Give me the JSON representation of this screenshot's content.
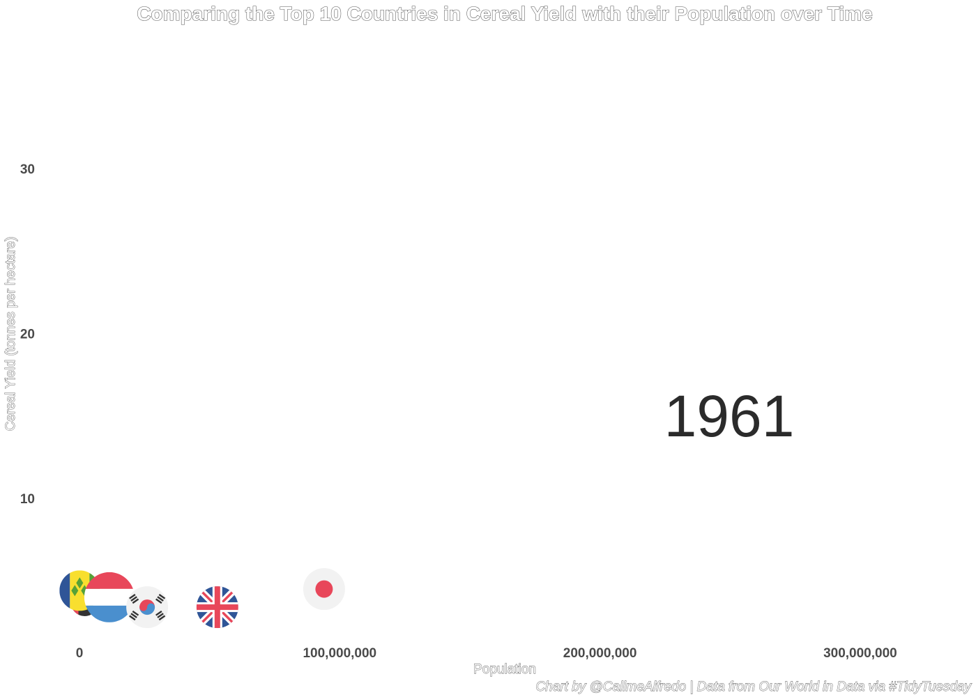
{
  "chart_data": {
    "type": "scatter",
    "title": "Comparing the Top 10 Countries in Cereal Yield with their Population over Time",
    "xlabel": "Population",
    "ylabel": "Cereal Yield (tonnes per hectare)",
    "caption": "Chart by @CallmeAlfredo | Data from Our World in Data via #TidyTuesday",
    "frame_label": "1961",
    "xlim": [
      0,
      340000000
    ],
    "ylim": [
      2,
      35
    ],
    "x_ticks": [
      {
        "value": 0,
        "label": "0"
      },
      {
        "value": 100000000,
        "label": "100,000,000"
      },
      {
        "value": 200000000,
        "label": "200,000,000"
      },
      {
        "value": 300000000,
        "label": "300,000,000"
      }
    ],
    "y_ticks": [
      {
        "value": 10,
        "label": "10"
      },
      {
        "value": 20,
        "label": "20"
      },
      {
        "value": 30,
        "label": "30"
      }
    ],
    "grid": false,
    "legend": "none",
    "points": [
      {
        "flag": "united-arab-emirates-flag",
        "x": 2000000,
        "y": 3.7
      },
      {
        "flag": "saint-vincent-and-the-grenadines-flag",
        "x": 80000,
        "y": 4.4
      },
      {
        "flag": "netherlands-flag",
        "x": 11500000,
        "y": 4.0
      },
      {
        "flag": "south-korea-flag",
        "x": 26000000,
        "y": 3.4
      },
      {
        "flag": "united-kingdom-flag",
        "x": 53000000,
        "y": 3.4
      },
      {
        "flag": "japan-flag",
        "x": 94000000,
        "y": 4.5
      }
    ],
    "colors": {
      "flag_red": "#e8475a",
      "flag_blue": "#2f5597",
      "flag_light_blue": "#4a8fce",
      "flag_yellow": "#f8df2f",
      "flag_green": "#56a137",
      "flag_white_bg": "#f2f2f2",
      "flag_black": "#333333",
      "tick_text": "#4a4a4a",
      "year_text": "#2b2b2b"
    }
  }
}
